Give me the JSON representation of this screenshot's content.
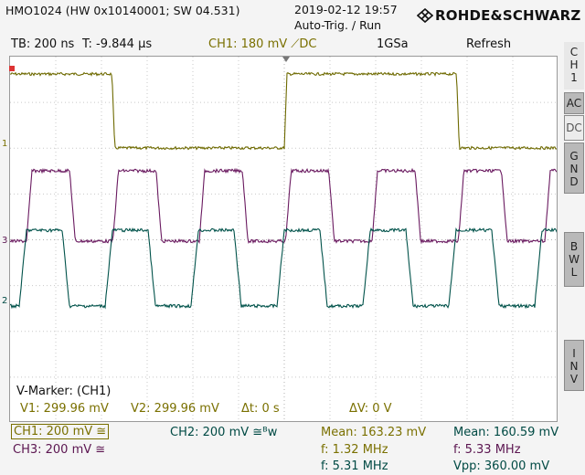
{
  "header": {
    "device_info": "HMO1024 (HW 0x10140001; SW 04.531)",
    "date_time": "2019-02-12 19:57",
    "trigger_status": "Auto-Trig. / Run",
    "brand": "ROHDE&SCHWARZ"
  },
  "status_bar": {
    "timebase": "TB: 200 ns",
    "trigger_time": "T: -9.844 µs",
    "ch1_setting": "CH1: 180 mV ⟋DC",
    "sample_rate": "1GSa",
    "mode": "Refresh"
  },
  "side_panel": {
    "channel": [
      "C",
      "H",
      "1"
    ],
    "ac": "AC",
    "dc": "DC",
    "gnd": [
      "G",
      "N",
      "D"
    ],
    "bwl": [
      "B",
      "W",
      "L"
    ],
    "inv": [
      "I",
      "N",
      "V"
    ]
  },
  "markers": {
    "ch1_marker": "1",
    "ch3_marker": "3",
    "ch2_marker": "2",
    "v_marker_title": "V-Marker: (CH1)",
    "v1": "V1: 299.96 mV",
    "v2": "V2: 299.96 mV",
    "delta_t": "Δt: 0 s",
    "delta_v": "ΔV: 0 V"
  },
  "bottom": {
    "ch1_scale": "CH1: 200 mV ≅",
    "ch2_scale": "CH2: 200 mV ≅ᴮw",
    "ch3_scale": "CH3: 200 mV ≅",
    "meas1_mean": "Mean: 163.23 mV",
    "meas1_f1": "f: 1.32 MHz",
    "meas1_f2": "f: 5.31 MHz",
    "meas2_mean": "Mean: 160.59 mV",
    "meas2_f": "f: 5.33 MHz",
    "meas2_vpp": "Vpp: 360.00 mV"
  },
  "colors": {
    "ch1": "#6e6a00",
    "ch2": "#00524a",
    "ch3": "#6a1a60",
    "grid": "#c8c8c8"
  },
  "traces": {
    "ch1": {
      "frequency_mhz": 1.32,
      "high_level": "upper",
      "low_level": "lower"
    },
    "ch3": {
      "frequency_mhz": 5.31
    },
    "ch2": {
      "frequency_mhz": 5.33
    }
  }
}
